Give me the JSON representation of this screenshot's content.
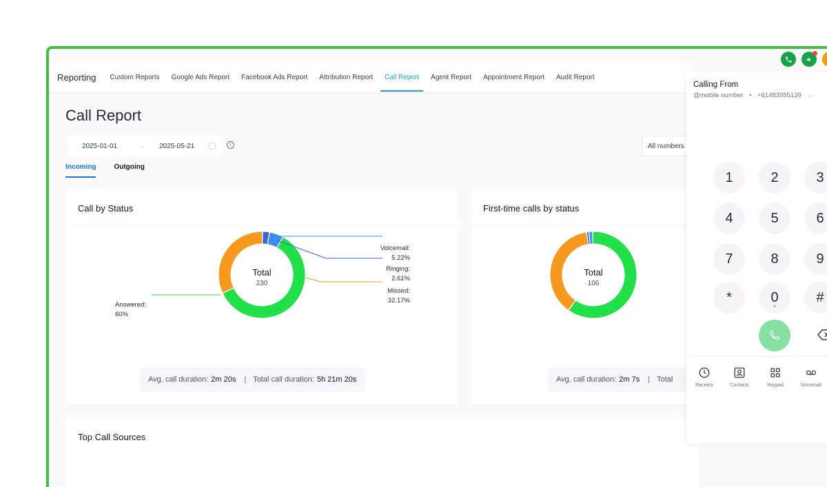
{
  "nav": {
    "brand": "Reporting",
    "items": [
      "Custom Reports",
      "Google Ads Report",
      "Facebook Ads Report",
      "Attribution Report",
      "Call Report",
      "Agent Report",
      "Appointment Report",
      "Audit Report"
    ],
    "active": "Call Report"
  },
  "page": {
    "title": "Call Report",
    "date_from": "2025-01-01",
    "date_to": "2025-05-21",
    "number_filter": "All numbers",
    "tabs": [
      "Incoming",
      "Outgoing"
    ],
    "active_tab": "Incoming"
  },
  "card_status": {
    "title": "Call by Status",
    "total_label": "Total",
    "total_value": "230",
    "labels": {
      "answered": "Answered:",
      "answered_pct": "60%",
      "voicemail": "Voicemail:",
      "voicemail_pct": "5.22%",
      "ringing": "Ringing:",
      "ringing_pct": "2.61%",
      "missed": "Missed:",
      "missed_pct": "32.17%"
    },
    "avg_label": "Avg. call duration:",
    "avg_value": "2m 20s",
    "total_dur_label": "Total call duration:",
    "total_dur_value": "5h 21m 20s"
  },
  "card_first": {
    "title": "First-time calls by status",
    "total_label": "Total",
    "total_value": "106",
    "avg_label": "Avg. call duration:",
    "avg_value": "2m 7s",
    "total_dur_label": "Total"
  },
  "card_sources": {
    "title": "Top Call Sources"
  },
  "chart_data": [
    {
      "type": "pie",
      "title": "Call by Status",
      "categories": [
        "Answered",
        "Missed",
        "Ringing",
        "Voicemail"
      ],
      "values": [
        60,
        32.17,
        2.61,
        5.22
      ],
      "colors": [
        "#22e04a",
        "#f59a1f",
        "#3b66d6",
        "#3b8df0"
      ],
      "center_label": "Total",
      "center_value": 230
    },
    {
      "type": "pie",
      "title": "First-time calls by status",
      "categories": [
        "Answered",
        "Missed",
        "Ringing",
        "Voicemail"
      ],
      "values": [
        60,
        37.7,
        0.9,
        1.4
      ],
      "colors": [
        "#22e04a",
        "#f59a1f",
        "#3b66d6",
        "#3b8df0"
      ],
      "center_label": "Total",
      "center_value": 106
    }
  ],
  "dialer": {
    "calling_from": "Calling From",
    "from_source": "@mobile number",
    "from_number": "+61483955139",
    "keys": [
      {
        "main": "1",
        "sub": ""
      },
      {
        "main": "2",
        "sub": ""
      },
      {
        "main": "3",
        "sub": ""
      },
      {
        "main": "4",
        "sub": ""
      },
      {
        "main": "5",
        "sub": ""
      },
      {
        "main": "6",
        "sub": ""
      },
      {
        "main": "7",
        "sub": ""
      },
      {
        "main": "8",
        "sub": ""
      },
      {
        "main": "9",
        "sub": ""
      },
      {
        "main": "*",
        "sub": ""
      },
      {
        "main": "0",
        "sub": "+"
      },
      {
        "main": "#",
        "sub": ""
      }
    ],
    "nav": [
      "Recents",
      "Contacts",
      "Keypad",
      "Voicemail"
    ]
  },
  "colors": {
    "frame_border": "#3fbf3f",
    "accent_blue": "#1aa3d9",
    "answered": "#22e04a",
    "missed": "#f59a1f"
  }
}
